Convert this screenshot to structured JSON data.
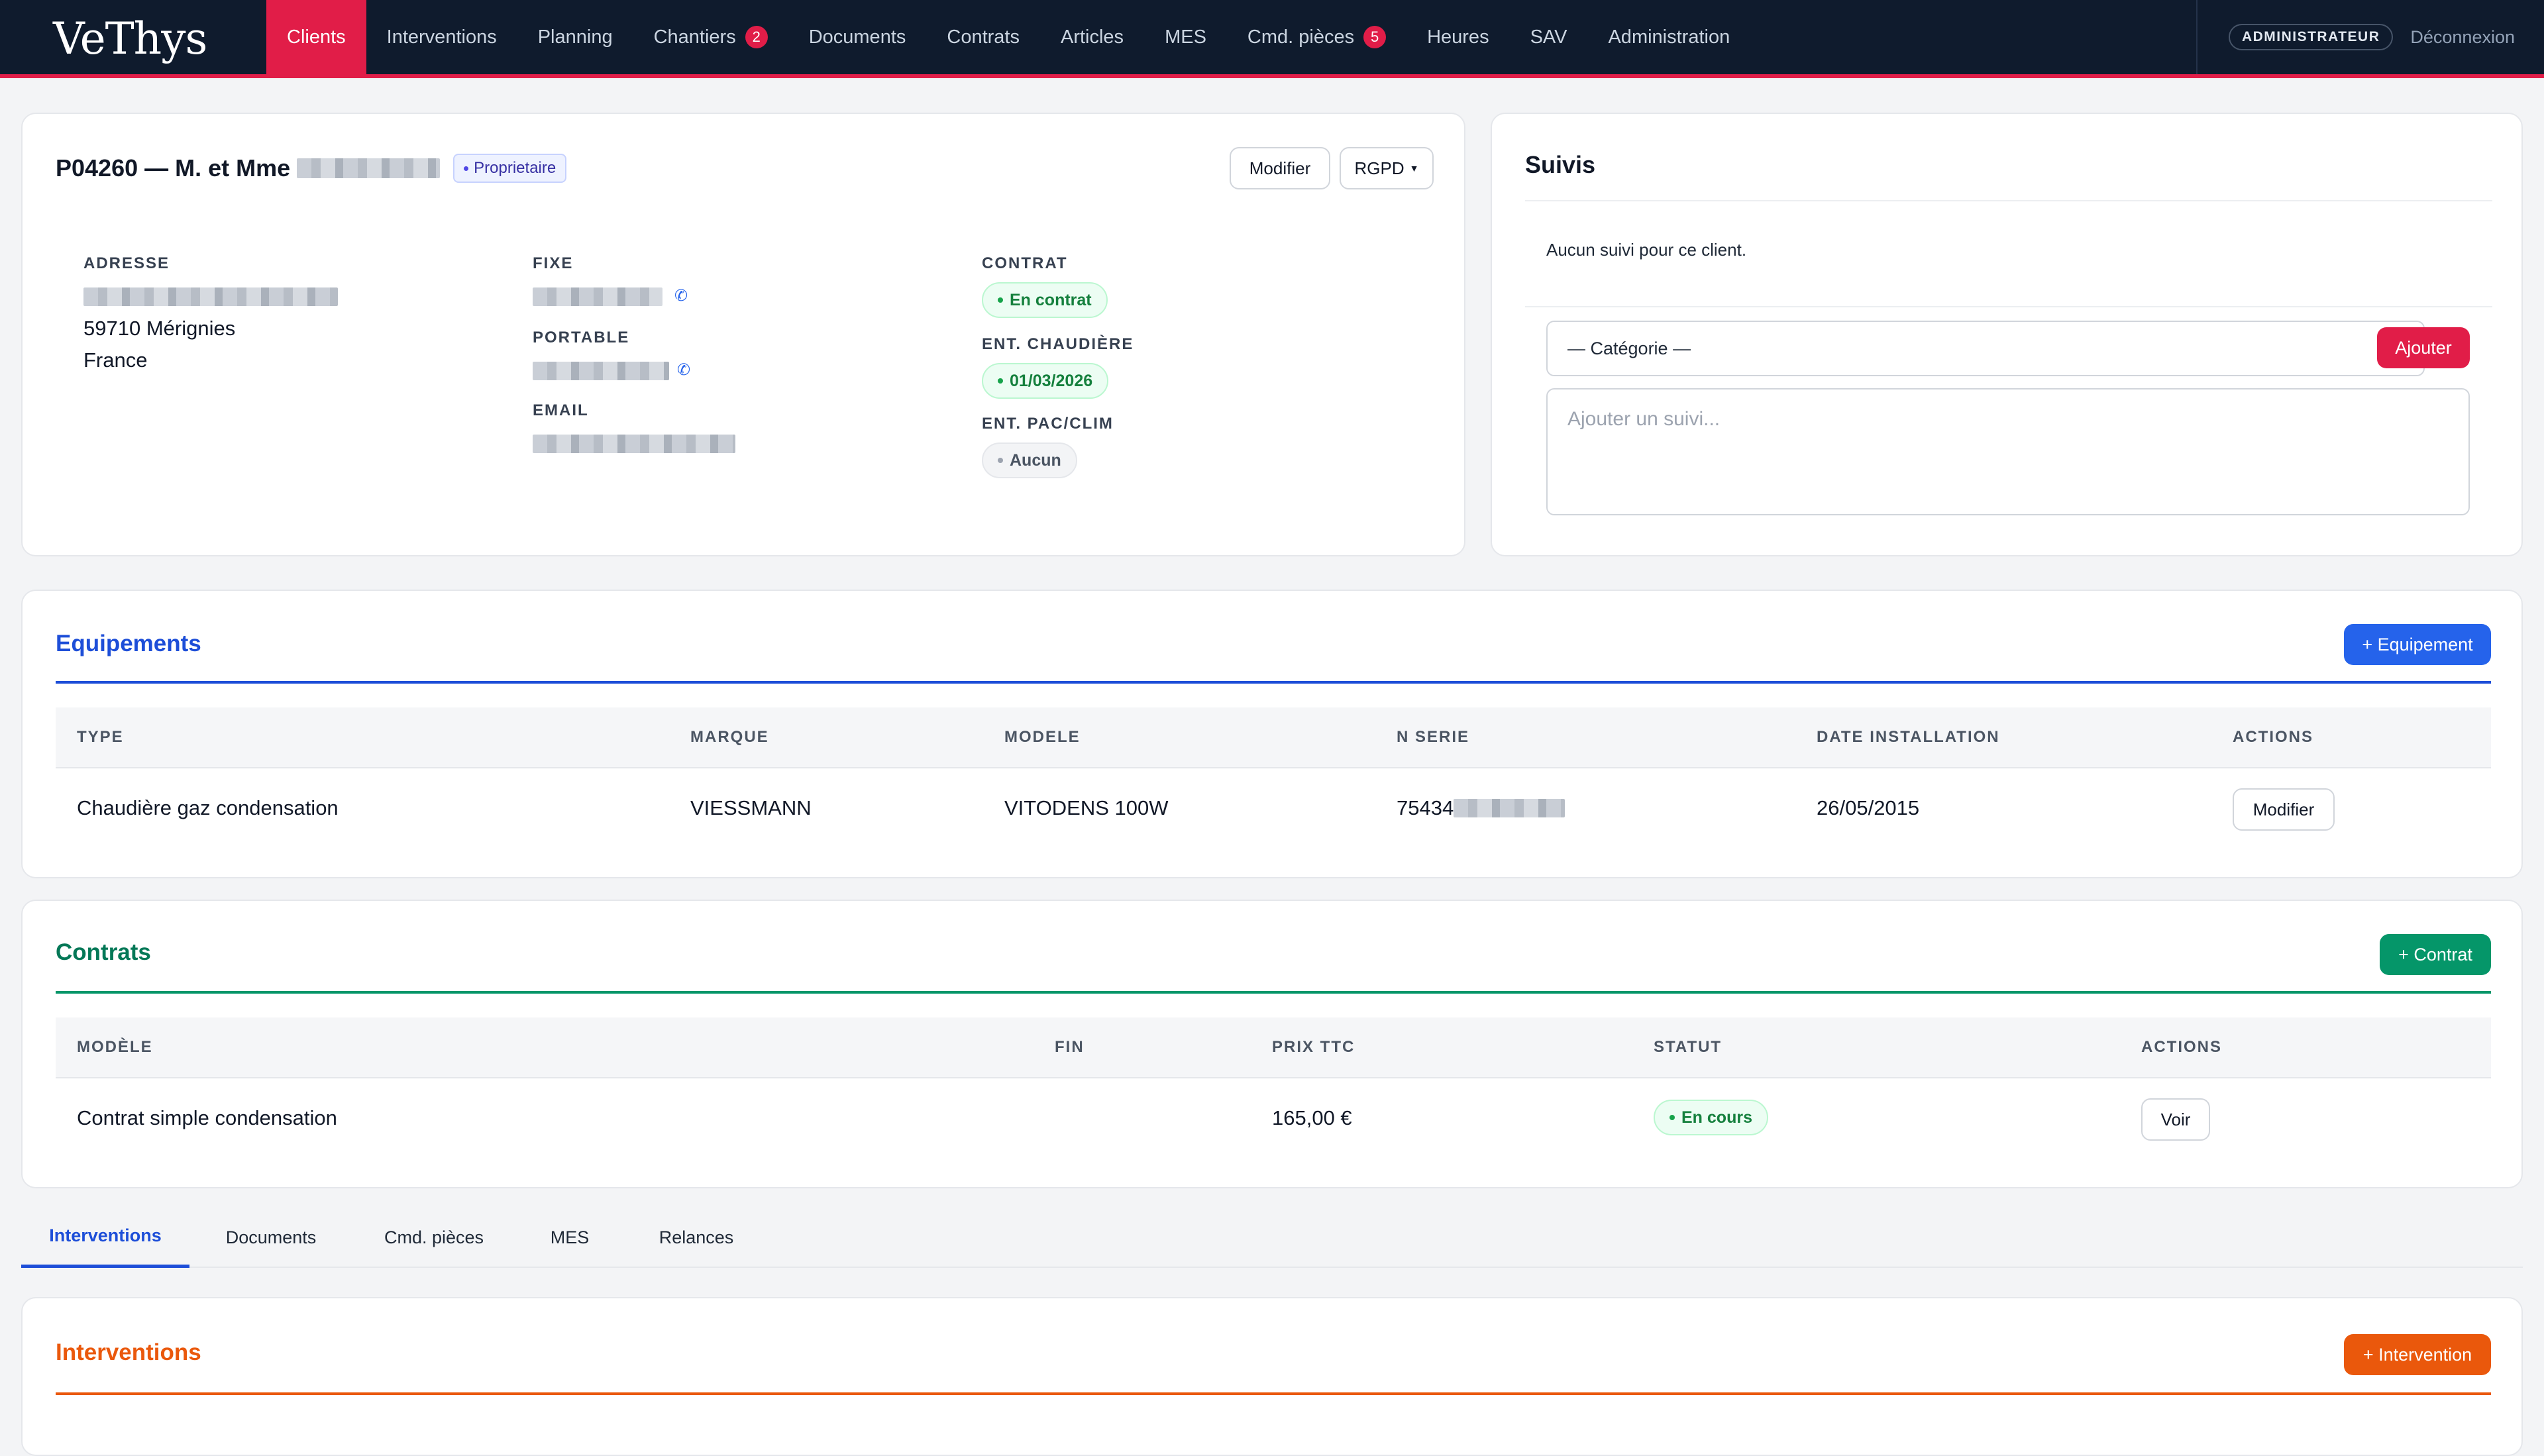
{
  "app": {
    "logo_text": "VeThys"
  },
  "nav": {
    "items": [
      {
        "label": "Clients",
        "active": true
      },
      {
        "label": "Interventions"
      },
      {
        "label": "Planning"
      },
      {
        "label": "Chantiers",
        "badge": "2"
      },
      {
        "label": "Documents"
      },
      {
        "label": "Contrats"
      },
      {
        "label": "Articles"
      },
      {
        "label": "MES"
      },
      {
        "label": "Cmd. pièces",
        "badge": "5"
      },
      {
        "label": "Heures"
      },
      {
        "label": "SAV"
      },
      {
        "label": "Administration"
      }
    ],
    "role": "ADMINISTRATEUR",
    "logout": "Déconnexion"
  },
  "client": {
    "title": "P04260 — M. et Mme",
    "owner_badge": "Proprietaire",
    "modify_button": "Modifier",
    "rgpd_button": "RGPD",
    "address": {
      "label": "ADRESSE",
      "city": "59710 Mérignies",
      "country": "France"
    },
    "fixe": {
      "label": "FIXE"
    },
    "portable": {
      "label": "PORTABLE"
    },
    "email": {
      "label": "EMAIL"
    },
    "contract": {
      "label": "CONTRAT",
      "status": "En contrat"
    },
    "boiler": {
      "label": "ENT. CHAUDIÈRE",
      "date": "01/03/2026"
    },
    "pac": {
      "label": "ENT. PAC/CLIM",
      "status": "Aucun"
    }
  },
  "suivis": {
    "title": "Suivis",
    "empty": "Aucun suivi pour ce client.",
    "category_placeholder": "— Catégorie —",
    "add_button": "Ajouter",
    "textarea_placeholder": "Ajouter un suivi..."
  },
  "equipements": {
    "title": "Equipements",
    "add_button": "+ Equipement",
    "headers": [
      "TYPE",
      "MARQUE",
      "MODELE",
      "N SERIE",
      "DATE INSTALLATION",
      "ACTIONS"
    ],
    "rows": [
      {
        "type": "Chaudière gaz condensation",
        "marque": "VIESSMANN",
        "modele": "VITODENS 100W",
        "serie": "75434",
        "date": "26/05/2015",
        "action": "Modifier"
      }
    ]
  },
  "contrats": {
    "title": "Contrats",
    "add_button": "+ Contrat",
    "headers": [
      "MODÈLE",
      "FIN",
      "PRIX TTC",
      "STATUT",
      "ACTIONS"
    ],
    "rows": [
      {
        "modele": "Contrat simple condensation",
        "fin": "",
        "prix": "165,00 €",
        "statut": "En cours",
        "action": "Voir"
      }
    ]
  },
  "tabs": {
    "items": [
      {
        "label": "Interventions",
        "active": true
      },
      {
        "label": "Documents"
      },
      {
        "label": "Cmd. pièces"
      },
      {
        "label": "MES"
      },
      {
        "label": "Relances"
      }
    ]
  },
  "interventions": {
    "title": "Interventions",
    "add_button": "+ Intervention"
  },
  "colors": {
    "nav_bg": "#0f1b2d",
    "accent_red": "#e11d48",
    "blue": "#1d4ed8",
    "green": "#047857",
    "orange": "#ea580c"
  }
}
